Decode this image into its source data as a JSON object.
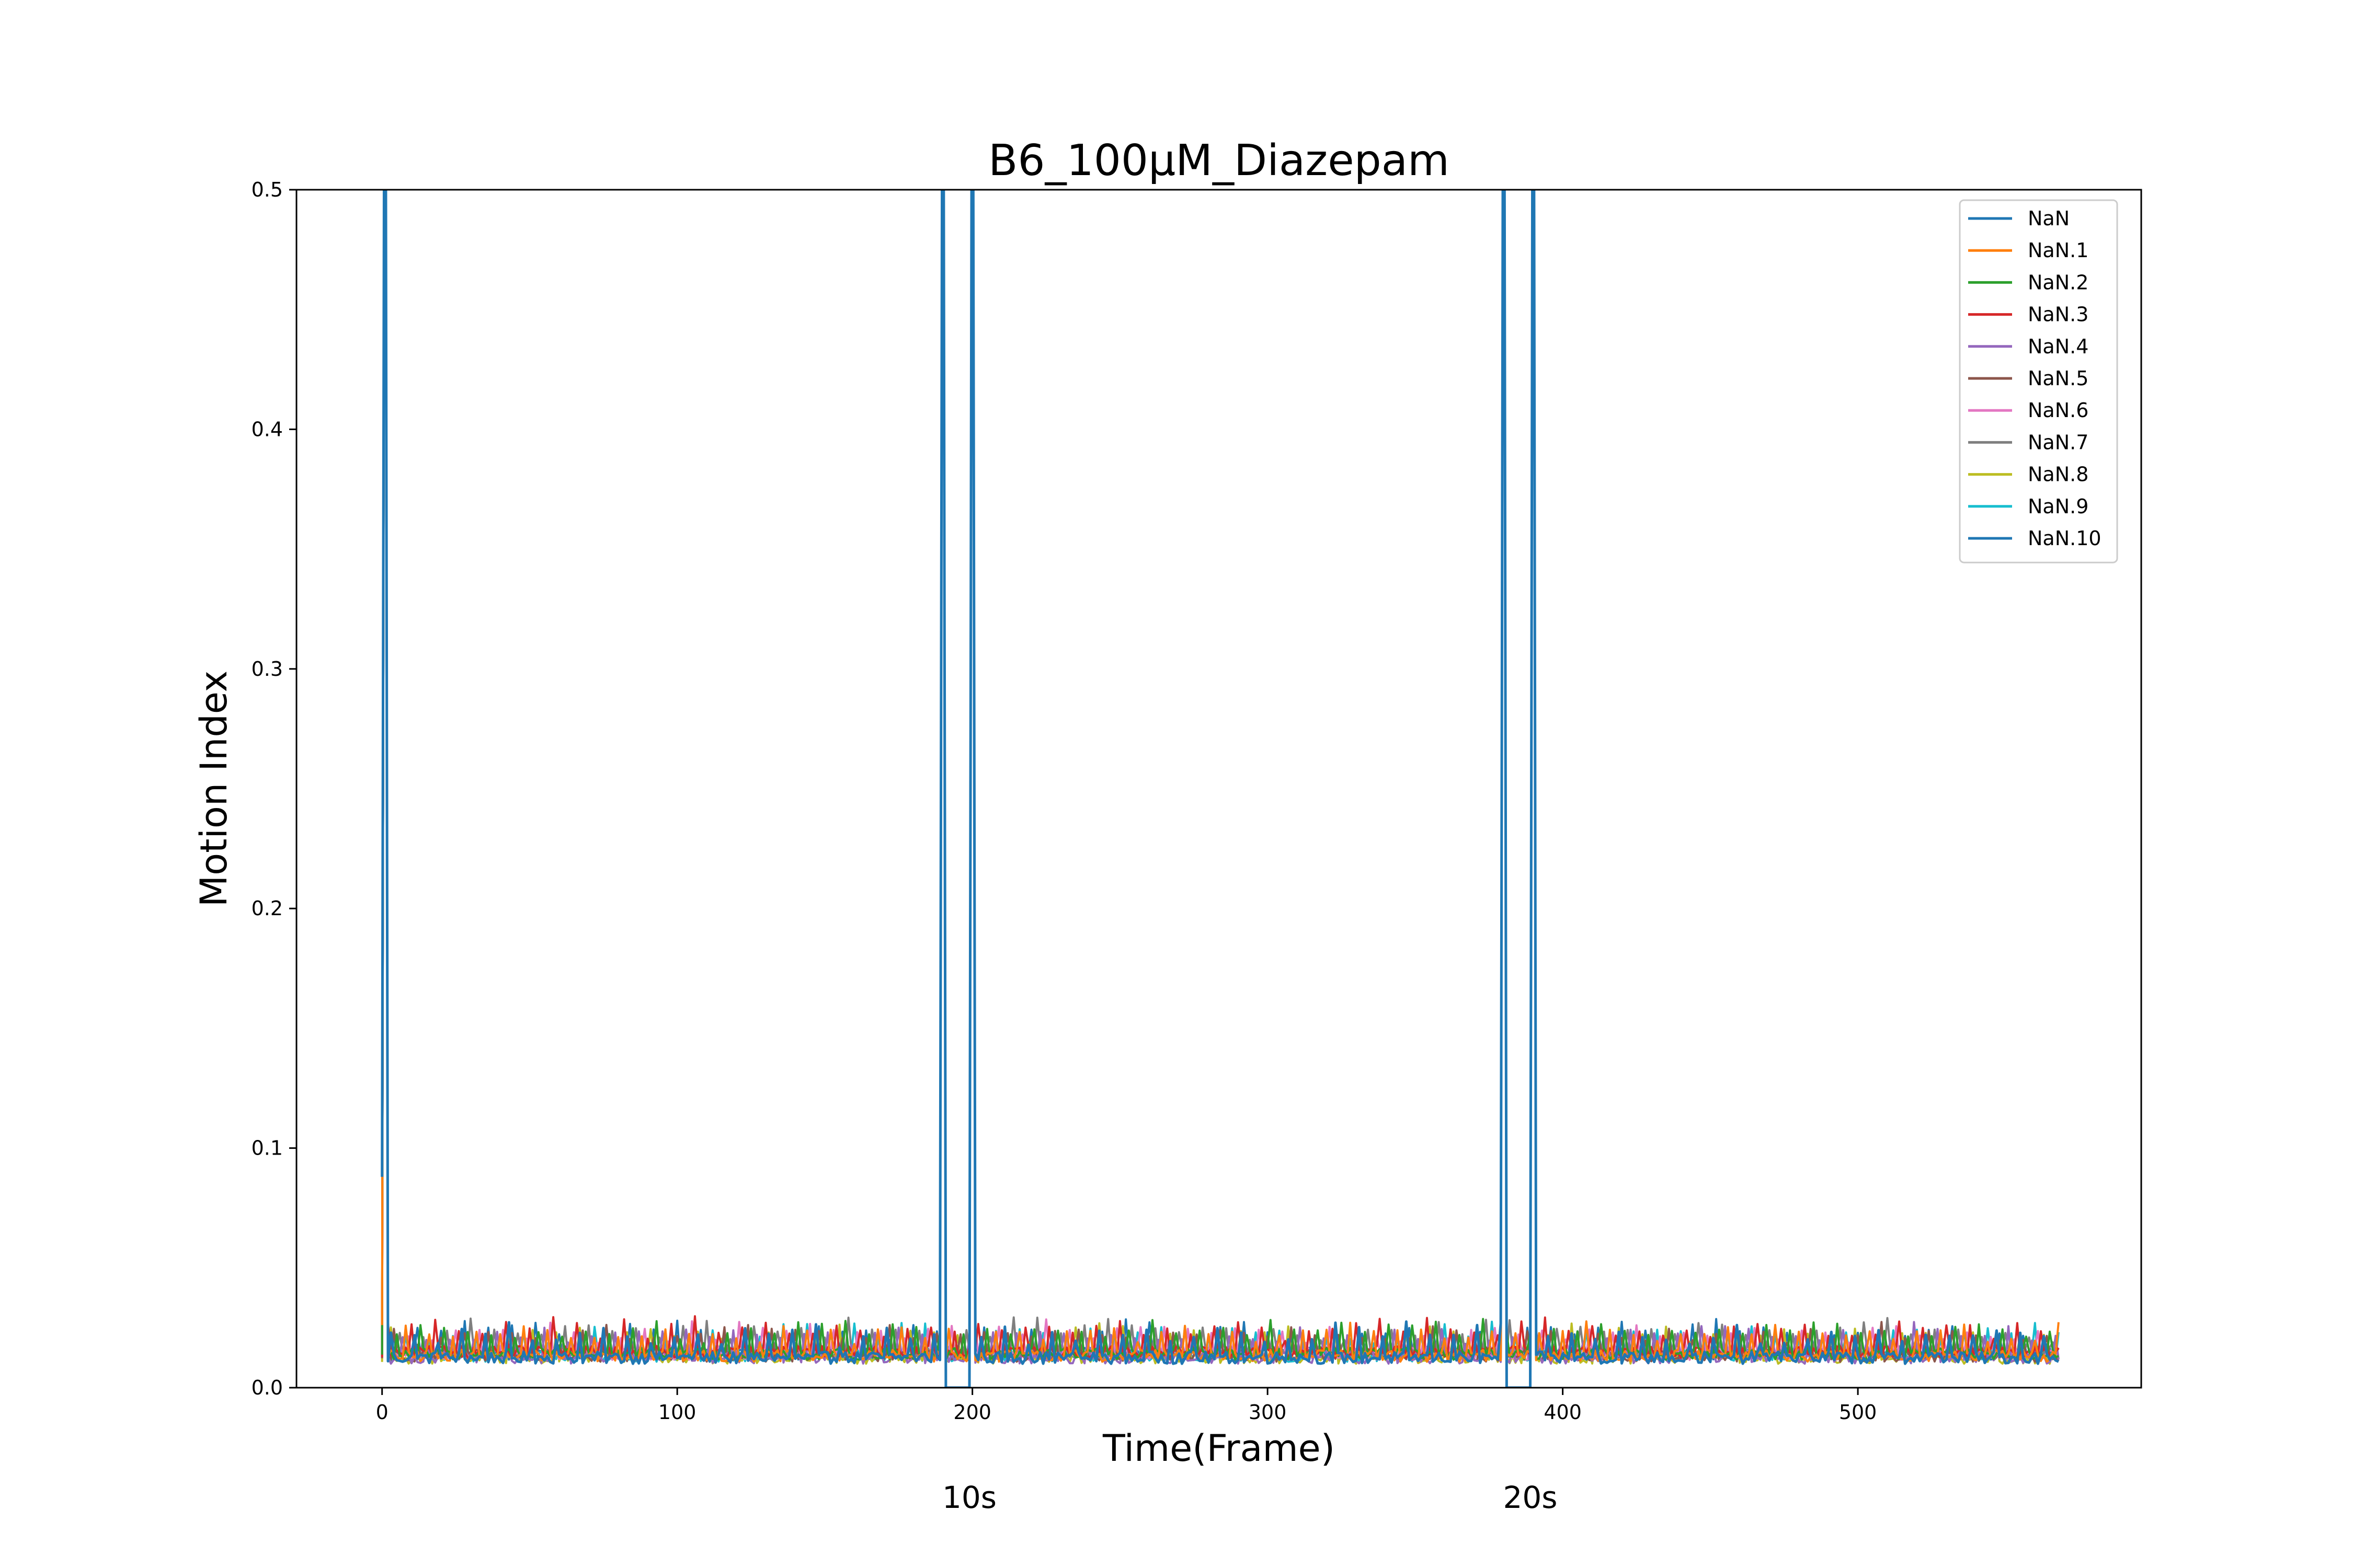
{
  "chart_data": {
    "type": "line",
    "title": "B6_100μM_Diazepam",
    "xlabel": "Time(Frame)",
    "ylabel": "Motion Index",
    "xlim": [
      -29,
      596
    ],
    "ylim": [
      0,
      0.5
    ],
    "xticks": [
      0,
      100,
      200,
      300,
      400,
      500
    ],
    "xtick_labels": [
      "0",
      "100",
      "200",
      "300",
      "400",
      "500"
    ],
    "yticks": [
      0.0,
      0.1,
      0.2,
      0.3,
      0.4,
      0.5
    ],
    "ytick_labels": [
      "0.0",
      "0.1",
      "0.2",
      "0.3",
      "0.4",
      "0.5"
    ],
    "grid": false,
    "legend_position": "top-right",
    "time_markers": [
      {
        "x": 199,
        "label": "10s"
      },
      {
        "x": 389,
        "label": "20s"
      }
    ],
    "x_range": [
      0,
      568
    ],
    "spike_frames": [
      {
        "start": 0,
        "peak": 1
      },
      {
        "start": 188,
        "peak": 190
      },
      {
        "start": 198,
        "peak": 200
      },
      {
        "start": 378,
        "peak": 380
      },
      {
        "start": 388,
        "peak": 390
      }
    ],
    "zero_segments": [
      [
        190,
        199
      ],
      [
        380,
        389
      ]
    ],
    "baseline_level": 0.012,
    "series": [
      {
        "name": "NaN",
        "color": "#1f77b4"
      },
      {
        "name": "NaN.1",
        "color": "#ff7f0e"
      },
      {
        "name": "NaN.2",
        "color": "#2ca02c"
      },
      {
        "name": "NaN.3",
        "color": "#d62728"
      },
      {
        "name": "NaN.4",
        "color": "#9467bd"
      },
      {
        "name": "NaN.5",
        "color": "#8c564b"
      },
      {
        "name": "NaN.6",
        "color": "#e377c2"
      },
      {
        "name": "NaN.7",
        "color": "#7f7f7f"
      },
      {
        "name": "NaN.8",
        "color": "#bcbd22"
      },
      {
        "name": "NaN.9",
        "color": "#17becf"
      },
      {
        "name": "NaN.10",
        "color": "#1f77b4"
      }
    ]
  }
}
